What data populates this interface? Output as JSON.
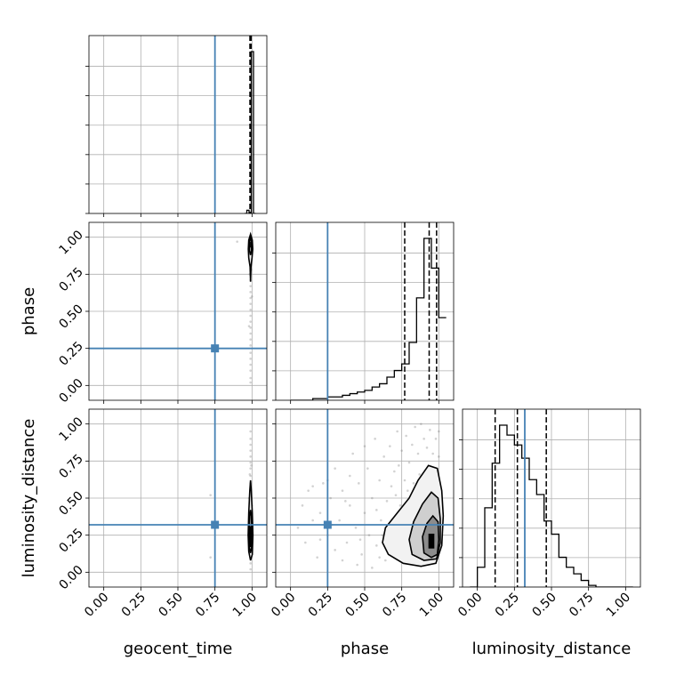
{
  "chart_data": {
    "type": "corner",
    "title": "",
    "parameters": [
      "geocent_time",
      "phase",
      "luminosity_distance"
    ],
    "axis_range": [
      -0.1,
      1.1
    ],
    "tick_labels": [
      "0.00",
      "0.25",
      "0.50",
      "0.75",
      "1.00"
    ],
    "tick_values": [
      0.0,
      0.25,
      0.5,
      0.75,
      1.0
    ],
    "truths": {
      "geocent_time": 0.75,
      "phase": 0.25,
      "luminosity_distance": 0.32
    },
    "grid": true,
    "colors": {
      "truth": "#4682b4",
      "hist": "#000000",
      "grid": "#b0b0b0",
      "scatter": "#7f7f7f"
    },
    "histograms": [
      {
        "parameter": "geocent_time",
        "bins": [
          0.95,
          0.965,
          0.98,
          0.995,
          1.01,
          1.025
        ],
        "counts": [
          0,
          2,
          0,
          100,
          0
        ],
        "quantiles": [
          0.986,
          0.99,
          0.994
        ]
      },
      {
        "parameter": "phase",
        "bins": [
          0.0,
          0.05,
          0.1,
          0.15,
          0.2,
          0.25,
          0.3,
          0.35,
          0.4,
          0.45,
          0.5,
          0.55,
          0.6,
          0.65,
          0.7,
          0.75,
          0.8,
          0.85,
          0.9,
          0.95,
          1.0,
          1.05
        ],
        "counts": [
          0,
          0,
          0,
          1,
          1,
          2,
          2,
          3,
          4,
          5,
          6,
          8,
          10,
          14,
          18,
          22,
          35,
          62,
          98,
          80,
          50
        ],
        "quantiles": [
          0.77,
          0.935,
          0.985
        ]
      },
      {
        "parameter": "luminosity_distance",
        "bins": [
          -0.05,
          0.0,
          0.05,
          0.1,
          0.15,
          0.2,
          0.25,
          0.3,
          0.35,
          0.4,
          0.45,
          0.5,
          0.55,
          0.6,
          0.65,
          0.7,
          0.75,
          0.8,
          0.85,
          0.9,
          0.95,
          1.0,
          1.05
        ],
        "counts": [
          0,
          12,
          48,
          75,
          98,
          92,
          86,
          78,
          65,
          56,
          40,
          32,
          18,
          12,
          8,
          4,
          1,
          0,
          0,
          0,
          0,
          0
        ],
        "quantiles": [
          0.12,
          0.27,
          0.465
        ]
      }
    ],
    "scatter_panels": [
      {
        "x": "geocent_time",
        "y": "phase",
        "density_center": [
          0.99,
          0.95
        ],
        "contours": [
          [
            [
              0.978,
              0.86
            ],
            [
              0.975,
              0.92
            ],
            [
              0.978,
              0.98
            ],
            [
              0.99,
              1.02
            ],
            [
              1.002,
              0.98
            ],
            [
              1.005,
              0.92
            ],
            [
              1.0,
              0.86
            ],
            [
              0.993,
              0.8
            ],
            [
              0.99,
              0.7
            ],
            [
              0.987,
              0.8
            ]
          ],
          [
            [
              0.983,
              0.91
            ],
            [
              0.983,
              0.97
            ],
            [
              0.99,
              0.995
            ],
            [
              0.997,
              0.97
            ],
            [
              0.997,
              0.91
            ],
            [
              0.99,
              0.88
            ]
          ]
        ],
        "core": [
          [
            0.987,
            0.93
          ],
          [
            0.987,
            0.97
          ],
          [
            0.994,
            0.97
          ],
          [
            0.994,
            0.93
          ]
        ],
        "points": [
          [
            0.99,
            0.02
          ],
          [
            0.99,
            0.05
          ],
          [
            0.99,
            0.1
          ],
          [
            0.99,
            0.14
          ],
          [
            0.99,
            0.18
          ],
          [
            0.99,
            0.22
          ],
          [
            0.99,
            0.27
          ],
          [
            0.99,
            0.31
          ],
          [
            0.99,
            0.35
          ],
          [
            0.99,
            0.39
          ],
          [
            0.99,
            0.43
          ],
          [
            0.99,
            0.47
          ],
          [
            0.99,
            0.51
          ],
          [
            0.99,
            0.55
          ],
          [
            0.99,
            0.59
          ],
          [
            0.99,
            0.63
          ],
          [
            0.99,
            0.67
          ],
          [
            0.99,
            0.71
          ],
          [
            0.98,
            0.4
          ],
          [
            1.0,
            0.6
          ],
          [
            0.985,
            0.75
          ],
          [
            0.995,
            0.78
          ],
          [
            0.9,
            0.97
          ]
        ]
      },
      {
        "x": "geocent_time",
        "y": "luminosity_distance",
        "density_center": [
          0.99,
          0.22
        ],
        "contours": [
          [
            [
              0.978,
              0.14
            ],
            [
              0.974,
              0.25
            ],
            [
              0.978,
              0.4
            ],
            [
              0.985,
              0.55
            ],
            [
              0.99,
              0.62
            ],
            [
              0.995,
              0.55
            ],
            [
              1.002,
              0.4
            ],
            [
              1.006,
              0.25
            ],
            [
              1.002,
              0.12
            ],
            [
              0.99,
              0.08
            ]
          ],
          [
            [
              0.982,
              0.17
            ],
            [
              0.981,
              0.27
            ],
            [
              0.985,
              0.38
            ],
            [
              0.99,
              0.42
            ],
            [
              0.996,
              0.38
            ],
            [
              0.999,
              0.27
            ],
            [
              0.998,
              0.17
            ],
            [
              0.99,
              0.13
            ]
          ],
          [
            [
              0.986,
              0.2
            ],
            [
              0.986,
              0.28
            ],
            [
              0.99,
              0.31
            ],
            [
              0.995,
              0.28
            ],
            [
              0.995,
              0.2
            ],
            [
              0.99,
              0.17
            ]
          ]
        ],
        "core": [
          [
            0.987,
            0.2
          ],
          [
            0.987,
            0.27
          ],
          [
            0.994,
            0.27
          ],
          [
            0.994,
            0.2
          ]
        ],
        "points": [
          [
            0.99,
            0.02
          ],
          [
            0.99,
            0.06
          ],
          [
            0.99,
            0.6
          ],
          [
            0.99,
            0.65
          ],
          [
            0.99,
            0.7
          ],
          [
            0.99,
            0.74
          ],
          [
            0.99,
            0.78
          ],
          [
            0.99,
            0.82
          ],
          [
            0.99,
            0.86
          ],
          [
            0.99,
            0.9
          ],
          [
            0.99,
            0.95
          ],
          [
            0.98,
            0.5
          ],
          [
            1.0,
            0.45
          ],
          [
            0.985,
            0.66
          ],
          [
            0.995,
            0.72
          ],
          [
            0.72,
            0.52
          ],
          [
            0.72,
            0.1
          ]
        ]
      },
      {
        "x": "phase",
        "y": "luminosity_distance",
        "density_center": [
          0.95,
          0.22
        ],
        "contours": [
          [
            [
              0.66,
              0.12
            ],
            [
              0.62,
              0.2
            ],
            [
              0.64,
              0.3
            ],
            [
              0.72,
              0.4
            ],
            [
              0.8,
              0.5
            ],
            [
              0.86,
              0.62
            ],
            [
              0.93,
              0.72
            ],
            [
              0.99,
              0.7
            ],
            [
              1.02,
              0.55
            ],
            [
              1.03,
              0.38
            ],
            [
              1.02,
              0.18
            ],
            [
              0.98,
              0.06
            ],
            [
              0.88,
              0.04
            ],
            [
              0.76,
              0.06
            ]
          ],
          [
            [
              0.82,
              0.12
            ],
            [
              0.8,
              0.22
            ],
            [
              0.83,
              0.34
            ],
            [
              0.89,
              0.46
            ],
            [
              0.95,
              0.54
            ],
            [
              0.995,
              0.5
            ],
            [
              1.01,
              0.36
            ],
            [
              1.01,
              0.2
            ],
            [
              0.985,
              0.09
            ],
            [
              0.9,
              0.08
            ]
          ],
          [
            [
              0.9,
              0.13
            ],
            [
              0.89,
              0.24
            ],
            [
              0.92,
              0.33
            ],
            [
              0.96,
              0.38
            ],
            [
              0.995,
              0.34
            ],
            [
              1.0,
              0.22
            ],
            [
              0.99,
              0.12
            ],
            [
              0.95,
              0.1
            ]
          ]
        ],
        "core": [
          [
            0.93,
            0.16
          ],
          [
            0.93,
            0.26
          ],
          [
            0.97,
            0.26
          ],
          [
            0.97,
            0.16
          ]
        ],
        "points": [
          [
            0.05,
            0.3
          ],
          [
            0.08,
            0.45
          ],
          [
            0.1,
            0.2
          ],
          [
            0.12,
            0.55
          ],
          [
            0.15,
            0.35
          ],
          [
            0.18,
            0.1
          ],
          [
            0.2,
            0.4
          ],
          [
            0.22,
            0.6
          ],
          [
            0.25,
            0.25
          ],
          [
            0.27,
            0.5
          ],
          [
            0.3,
            0.15
          ],
          [
            0.3,
            0.7
          ],
          [
            0.33,
            0.35
          ],
          [
            0.35,
            0.55
          ],
          [
            0.38,
            0.2
          ],
          [
            0.4,
            0.45
          ],
          [
            0.42,
            0.8
          ],
          [
            0.44,
            0.3
          ],
          [
            0.46,
            0.6
          ],
          [
            0.48,
            0.12
          ],
          [
            0.5,
            0.4
          ],
          [
            0.52,
            0.7
          ],
          [
            0.53,
            0.25
          ],
          [
            0.55,
            0.5
          ],
          [
            0.57,
            0.9
          ],
          [
            0.58,
            0.18
          ],
          [
            0.6,
            0.62
          ],
          [
            0.61,
            0.35
          ],
          [
            0.63,
            0.78
          ],
          [
            0.64,
            0.08
          ],
          [
            0.65,
            0.48
          ],
          [
            0.67,
            0.85
          ],
          [
            0.68,
            0.58
          ],
          [
            0.7,
            0.68
          ],
          [
            0.72,
            0.95
          ],
          [
            0.73,
            0.72
          ],
          [
            0.75,
            0.82
          ],
          [
            0.77,
            0.62
          ],
          [
            0.78,
            0.92
          ],
          [
            0.8,
            0.74
          ],
          [
            0.82,
            0.86
          ],
          [
            0.84,
            0.98
          ],
          [
            0.86,
            0.8
          ],
          [
            0.88,
            1.0
          ],
          [
            0.9,
            0.9
          ],
          [
            0.92,
            0.84
          ],
          [
            0.94,
            0.96
          ],
          [
            0.96,
            0.8
          ],
          [
            0.98,
            0.9
          ],
          [
            1.0,
            0.78
          ],
          [
            1.0,
            0.95
          ],
          [
            0.45,
            0.05
          ],
          [
            0.55,
            0.03
          ],
          [
            0.6,
            0.1
          ],
          [
            0.35,
            0.08
          ],
          [
            0.25,
            0.62
          ],
          [
            0.15,
            0.58
          ],
          [
            0.4,
            0.65
          ],
          [
            0.5,
            0.85
          ],
          [
            0.62,
            0.25
          ],
          [
            0.58,
            0.42
          ],
          [
            0.47,
            0.22
          ],
          [
            0.37,
            0.48
          ],
          [
            0.28,
            0.32
          ],
          [
            0.2,
            0.22
          ],
          [
            0.68,
            0.3
          ],
          [
            0.66,
            0.15
          ],
          [
            0.71,
            0.52
          ],
          [
            0.74,
            0.45
          ],
          [
            0.79,
            0.55
          ],
          [
            0.83,
            0.6
          ],
          [
            0.87,
            0.66
          ]
        ]
      }
    ]
  }
}
